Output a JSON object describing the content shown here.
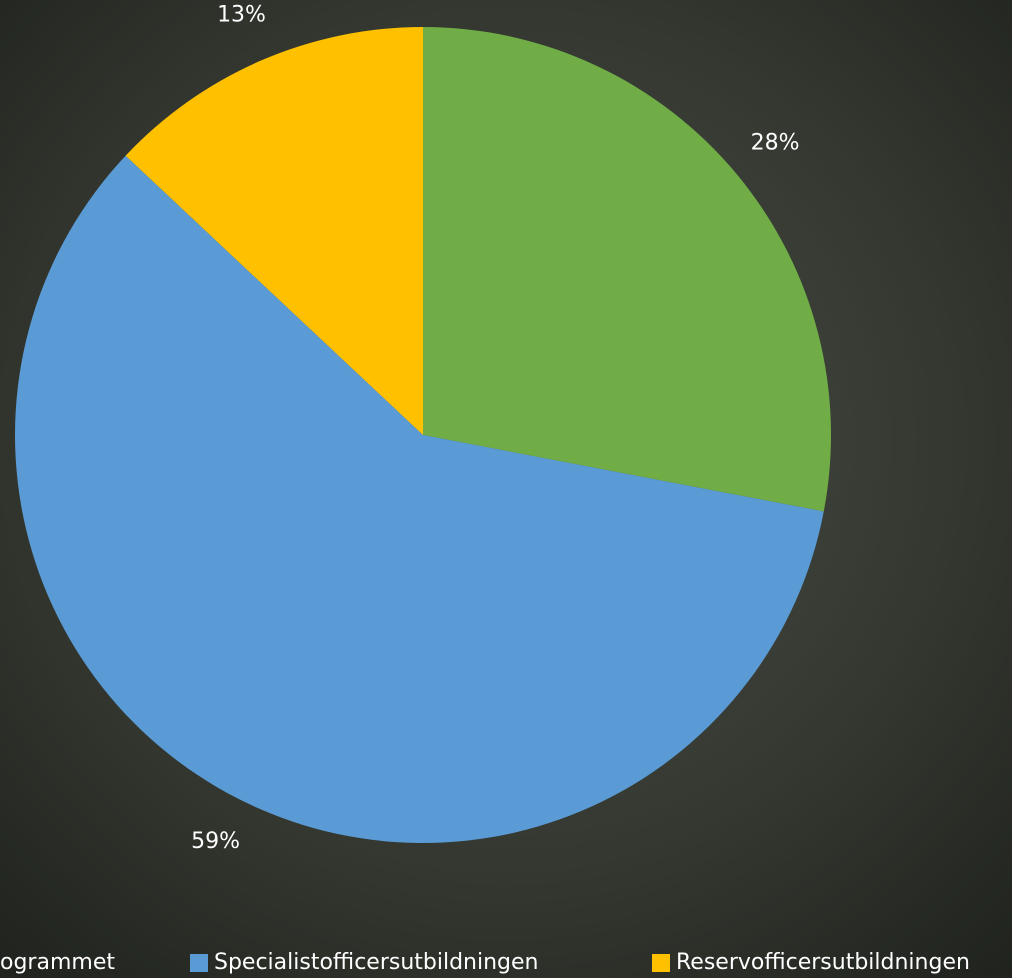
{
  "chart_data": {
    "type": "pie",
    "categories": [
      "ogrammet",
      "Specialistofficersutbildningen",
      "Reservofficersutbildningen"
    ],
    "values": [
      28,
      59,
      13
    ],
    "value_labels": [
      "28%",
      "59%",
      "13%"
    ],
    "colors": [
      "#70ad47",
      "#5b9bd5",
      "#ffc000"
    ]
  }
}
